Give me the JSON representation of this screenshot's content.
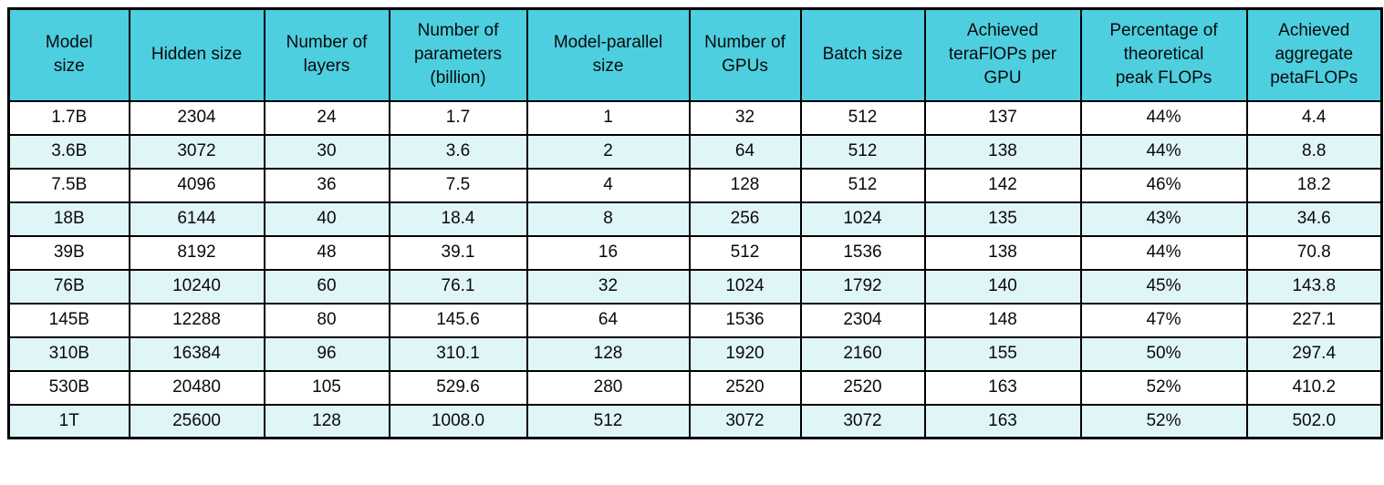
{
  "chart_data": {
    "type": "table",
    "columns": [
      "Model\nsize",
      "Hidden size",
      "Number of\nlayers",
      "Number of\nparameters\n(billion)",
      "Model-parallel\nsize",
      "Number of\nGPUs",
      "Batch size",
      "Achieved\nteraFlOPs per\nGPU",
      "Percentage of\ntheoretical\npeak FLOPs",
      "Achieved\naggregate\npetaFLOPs"
    ],
    "rows": [
      [
        "1.7B",
        "2304",
        "24",
        "1.7",
        "1",
        "32",
        "512",
        "137",
        "44%",
        "4.4"
      ],
      [
        "3.6B",
        "3072",
        "30",
        "3.6",
        "2",
        "64",
        "512",
        "138",
        "44%",
        "8.8"
      ],
      [
        "7.5B",
        "4096",
        "36",
        "7.5",
        "4",
        "128",
        "512",
        "142",
        "46%",
        "18.2"
      ],
      [
        "18B",
        "6144",
        "40",
        "18.4",
        "8",
        "256",
        "1024",
        "135",
        "43%",
        "34.6"
      ],
      [
        "39B",
        "8192",
        "48",
        "39.1",
        "16",
        "512",
        "1536",
        "138",
        "44%",
        "70.8"
      ],
      [
        "76B",
        "10240",
        "60",
        "76.1",
        "32",
        "1024",
        "1792",
        "140",
        "45%",
        "143.8"
      ],
      [
        "145B",
        "12288",
        "80",
        "145.6",
        "64",
        "1536",
        "2304",
        "148",
        "47%",
        "227.1"
      ],
      [
        "310B",
        "16384",
        "96",
        "310.1",
        "128",
        "1920",
        "2160",
        "155",
        "50%",
        "297.4"
      ],
      [
        "530B",
        "20480",
        "105",
        "529.6",
        "280",
        "2520",
        "2520",
        "163",
        "52%",
        "410.2"
      ],
      [
        "1T",
        "25600",
        "128",
        "1008.0",
        "512",
        "3072",
        "3072",
        "163",
        "52%",
        "502.0"
      ]
    ],
    "colors": {
      "header_bg": "#4dcfe0",
      "row_alt_bg": "#e0f5f8",
      "border": "#000000",
      "text": "#0a0a0a"
    },
    "layout_hints": {
      "legend": "none",
      "grid": "full black cell borders",
      "row_striping": "even data rows tinted light cyan"
    }
  }
}
